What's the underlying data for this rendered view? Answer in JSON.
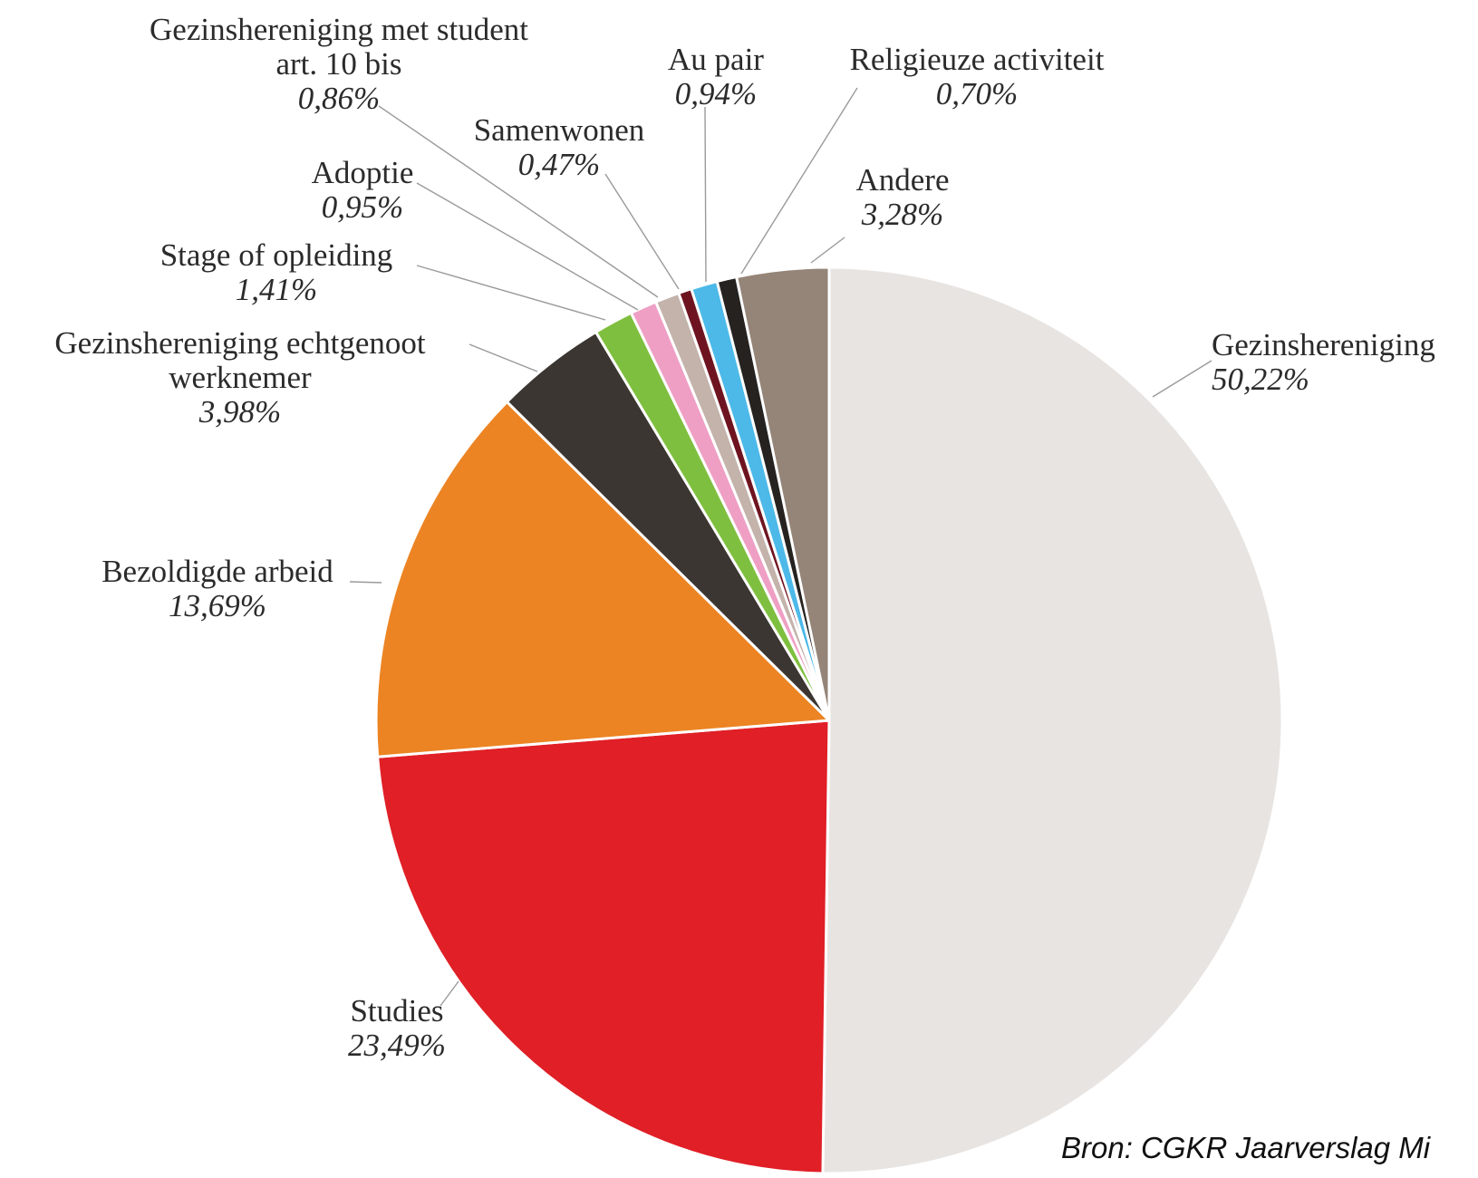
{
  "source_note": "Bron: CGKR Jaarverslag Mi",
  "chart_data": {
    "type": "pie",
    "start": "12 o'clock",
    "direction": "clockwise",
    "slices": [
      {
        "name": "Gezinshereniging",
        "name_lines": [
          "Gezinshereniging"
        ],
        "pct_label": "50,22%",
        "value": 50.22,
        "color": "#e8e4e1"
      },
      {
        "name": "Studies",
        "name_lines": [
          "Studies"
        ],
        "pct_label": "23,49%",
        "value": 23.49,
        "color": "#e01f26"
      },
      {
        "name": "Bezoldigde arbeid",
        "name_lines": [
          "Bezoldigde arbeid"
        ],
        "pct_label": "13,69%",
        "value": 13.69,
        "color": "#ec8423"
      },
      {
        "name": "Gezinshereniging echtgenoot werknemer",
        "name_lines": [
          "Gezinshereniging echtgenoot",
          "werknemer"
        ],
        "pct_label": "3,98%",
        "value": 3.98,
        "color": "#3b3631"
      },
      {
        "name": "Stage of opleiding",
        "name_lines": [
          "Stage of opleiding"
        ],
        "pct_label": "1,41%",
        "value": 1.41,
        "color": "#7fbf3f"
      },
      {
        "name": "Adoptie",
        "name_lines": [
          "Adoptie"
        ],
        "pct_label": "0,95%",
        "value": 0.95,
        "color": "#ef9fc4"
      },
      {
        "name": "Gezinshereniging met student art. 10 bis",
        "name_lines": [
          "Gezinshereniging met student",
          "art. 10 bis"
        ],
        "pct_label": "0,86%",
        "value": 0.86,
        "color": "#c3b3ab"
      },
      {
        "name": "Samenwonen",
        "name_lines": [
          "Samenwonen"
        ],
        "pct_label": "0,47%",
        "value": 0.47,
        "color": "#6e1420"
      },
      {
        "name": "Au pair",
        "name_lines": [
          "Au pair"
        ],
        "pct_label": "0,94%",
        "value": 0.94,
        "color": "#4cb9e9"
      },
      {
        "name": "Religieuze activiteit",
        "name_lines": [
          "Religieuze activiteit"
        ],
        "pct_label": "0,70%",
        "value": 0.7,
        "color": "#252220"
      },
      {
        "name": "Andere",
        "name_lines": [
          "Andere"
        ],
        "pct_label": "3,28%",
        "value": 3.28,
        "color": "#958578"
      }
    ]
  }
}
